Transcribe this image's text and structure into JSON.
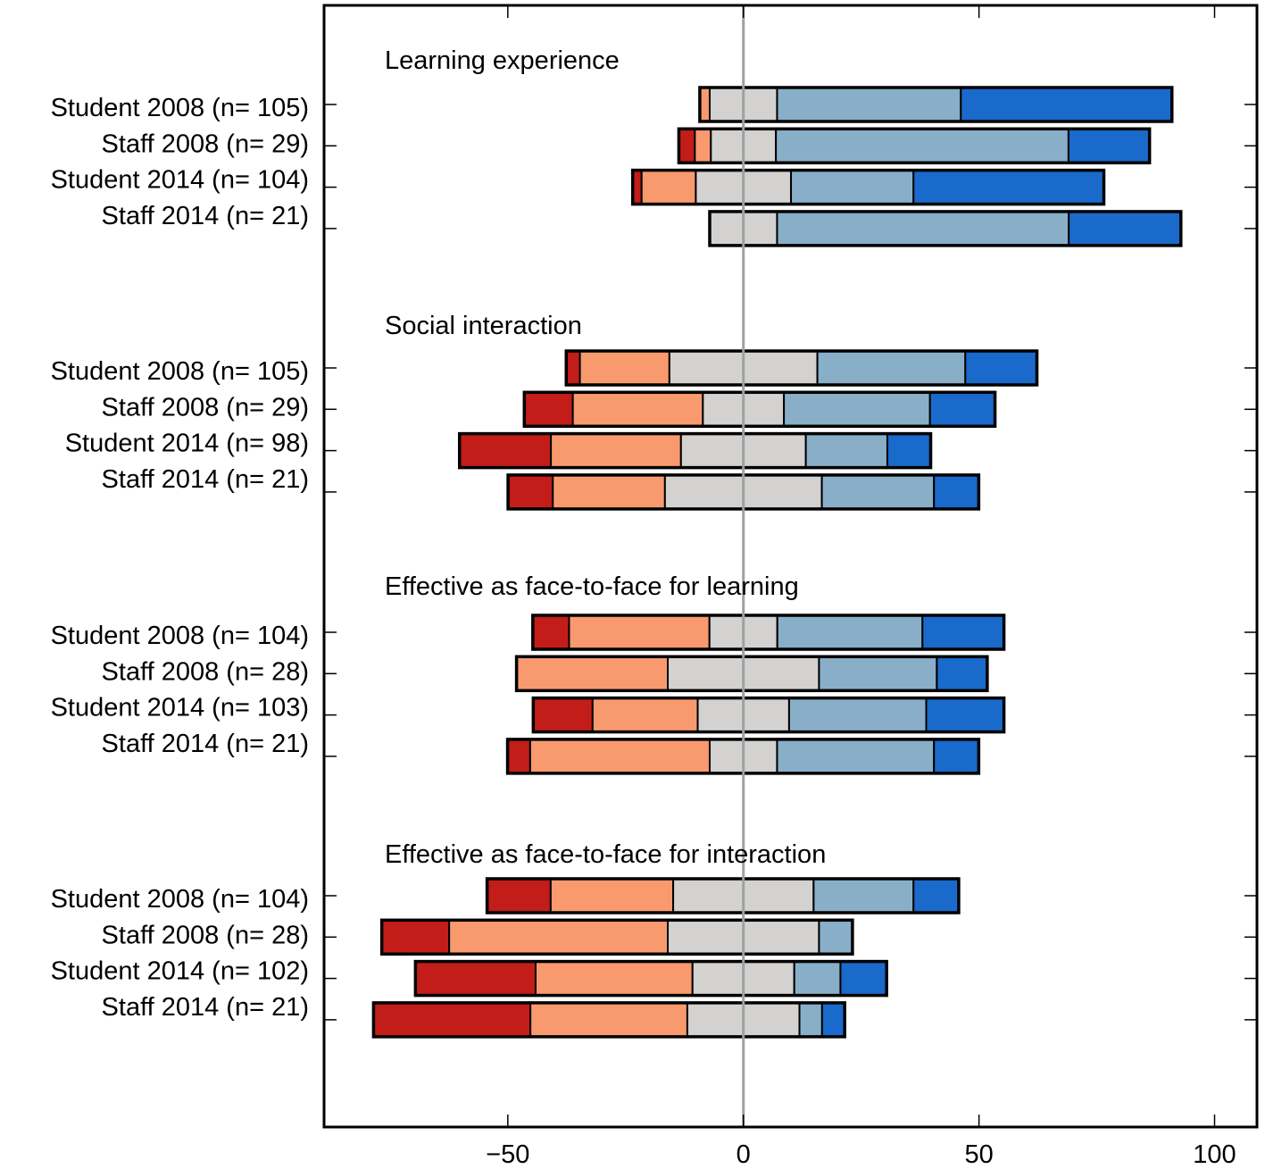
{
  "chart_data": {
    "type": "bar",
    "subtype": "diverging-stacked-horizontal",
    "title": "",
    "xlabel": "",
    "ylabel": "",
    "xlim": [
      -89,
      109
    ],
    "xticks": [
      -50,
      0,
      50,
      100
    ],
    "xtick_labels": [
      "−50",
      "0",
      "50",
      "100"
    ],
    "grid": false,
    "legend": null,
    "unit": "percent of respondents",
    "centered_category": "neutral",
    "response_categories": [
      "strongly disagree",
      "disagree",
      "neutral",
      "agree",
      "strongly agree"
    ],
    "colors": {
      "strongly disagree": "#c21d18",
      "disagree": "#f99a6e",
      "neutral": "#d3d2d0",
      "agree": "#89afc8",
      "strongly agree": "#196aca",
      "zero_line": "#a0a0a0",
      "outline": "#000000"
    },
    "groups": [
      {
        "title": "Learning experience",
        "rows": [
          {
            "label": "Student 2008 (n= 105)",
            "values": [
              0,
              2.1,
              14.3,
              39.0,
              44.8
            ]
          },
          {
            "label": "Staff 2008 (n= 29)",
            "values": [
              3.4,
              3.4,
              13.8,
              62.1,
              17.2
            ]
          },
          {
            "label": "Student 2014 (n= 104)",
            "values": [
              1.9,
              11.5,
              20.2,
              26.0,
              40.4
            ]
          },
          {
            "label": "Staff 2014 (n= 21)",
            "values": [
              0,
              0,
              14.3,
              61.9,
              23.8
            ]
          }
        ]
      },
      {
        "title": "Social interaction",
        "rows": [
          {
            "label": "Student 2008 (n= 105)",
            "values": [
              2.9,
              19.0,
              31.4,
              31.4,
              15.2
            ]
          },
          {
            "label": "Staff 2008 (n= 29)",
            "values": [
              10.3,
              27.6,
              17.2,
              31.0,
              13.8
            ]
          },
          {
            "label": "Student 2014 (n= 98)",
            "values": [
              19.4,
              27.6,
              26.5,
              17.3,
              9.2
            ]
          },
          {
            "label": "Staff 2014 (n= 21)",
            "values": [
              9.5,
              23.8,
              33.3,
              23.8,
              9.5
            ]
          }
        ]
      },
      {
        "title": "Effective as face-to-face for learning",
        "rows": [
          {
            "label": "Student 2008 (n= 104)",
            "values": [
              7.7,
              29.8,
              14.4,
              30.8,
              17.3
            ]
          },
          {
            "label": "Staff 2008 (n= 28)",
            "values": [
              0,
              32.1,
              32.1,
              25.0,
              10.7
            ]
          },
          {
            "label": "Student 2014 (n= 103)",
            "values": [
              12.6,
              22.3,
              19.4,
              29.1,
              16.5
            ]
          },
          {
            "label": "Staff 2014 (n= 21)",
            "values": [
              4.8,
              38.1,
              14.3,
              33.3,
              9.5
            ]
          }
        ]
      },
      {
        "title": "Effective as face-to-face for interaction",
        "rows": [
          {
            "label": "Student 2008 (n= 104)",
            "values": [
              13.5,
              26.0,
              29.8,
              21.2,
              9.6
            ]
          },
          {
            "label": "Staff 2008 (n= 28)",
            "values": [
              14.3,
              46.4,
              32.1,
              7.1,
              0
            ]
          },
          {
            "label": "Student 2014 (n= 102)",
            "values": [
              25.5,
              33.3,
              21.6,
              9.8,
              9.8
            ]
          },
          {
            "label": "Staff 2014 (n= 21)",
            "values": [
              33.3,
              33.3,
              23.8,
              4.8,
              4.8
            ]
          }
        ]
      }
    ]
  }
}
